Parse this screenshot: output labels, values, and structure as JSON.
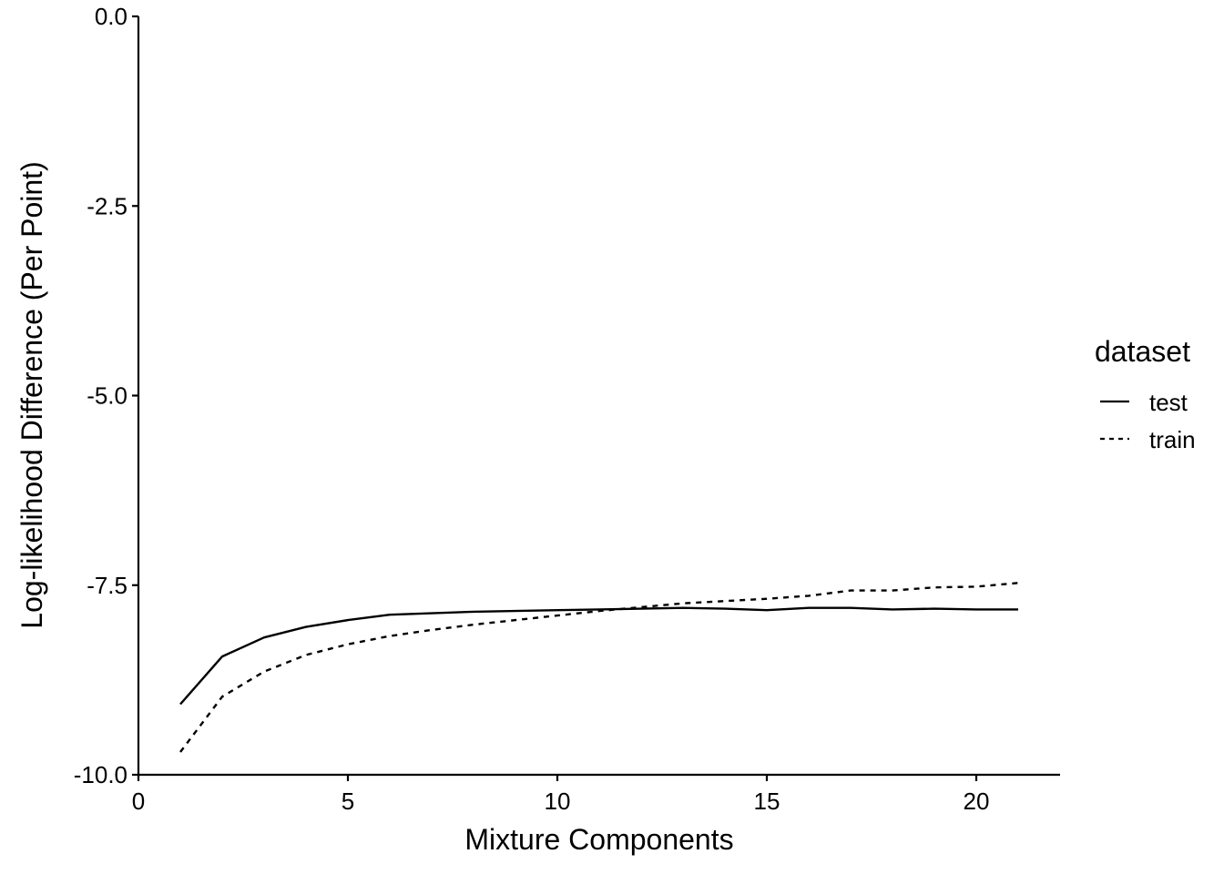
{
  "chart_data": {
    "type": "line",
    "title": "",
    "xlabel": "Mixture Components",
    "ylabel": "Log-likelihood Difference (Per Point)",
    "xlim": [
      0,
      22
    ],
    "ylim": [
      -10.0,
      0.0
    ],
    "x_ticks": [
      0,
      5,
      10,
      15,
      20
    ],
    "x_tick_labels": [
      "0",
      "5",
      "10",
      "15",
      "20"
    ],
    "y_ticks": [
      -10.0,
      -7.5,
      -5.0,
      -2.5,
      0.0
    ],
    "y_tick_labels": [
      "-10.0",
      "-7.5",
      "-5.0",
      "-2.5",
      "0.0"
    ],
    "grid": false,
    "legend": {
      "title": "dataset",
      "placement": "right"
    },
    "x": [
      1,
      2,
      3,
      4,
      5,
      6,
      7,
      8,
      9,
      10,
      11,
      12,
      13,
      14,
      15,
      16,
      17,
      18,
      19,
      20,
      21
    ],
    "series": [
      {
        "name": "test",
        "line_style": "solid",
        "color": "#000000",
        "values": [
          -9.07,
          -8.44,
          -8.19,
          -8.05,
          -7.96,
          -7.89,
          -7.87,
          -7.85,
          -7.84,
          -7.83,
          -7.82,
          -7.81,
          -7.8,
          -7.81,
          -7.83,
          -7.8,
          -7.8,
          -7.82,
          -7.81,
          -7.82,
          -7.82
        ]
      },
      {
        "name": "train",
        "line_style": "dashed",
        "color": "#000000",
        "values": [
          -9.7,
          -8.97,
          -8.64,
          -8.42,
          -8.28,
          -8.17,
          -8.09,
          -8.02,
          -7.96,
          -7.9,
          -7.84,
          -7.79,
          -7.74,
          -7.71,
          -7.68,
          -7.64,
          -7.57,
          -7.57,
          -7.53,
          -7.52,
          -7.47
        ]
      }
    ]
  }
}
